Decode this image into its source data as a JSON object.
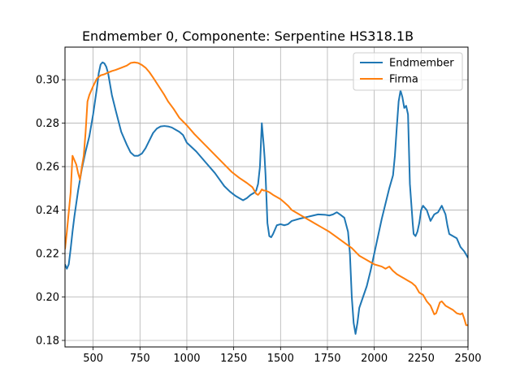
{
  "chart_data": {
    "type": "line",
    "title": "Endmember 0, Componente: Serpentine HS318.1B",
    "xlabel": "",
    "ylabel": "",
    "xlim": [
      350,
      2500
    ],
    "ylim": [
      0.177,
      0.315
    ],
    "xticks": [
      500,
      750,
      1000,
      1250,
      1500,
      1750,
      2000,
      2250,
      2500
    ],
    "yticks": [
      0.18,
      0.2,
      0.22,
      0.24,
      0.26,
      0.28,
      0.3
    ],
    "grid": true,
    "legend": "top-right",
    "series": [
      {
        "name": "Endmember",
        "color": "#1f77b4",
        "x": [
          350,
          360,
          370,
          380,
          390,
          400,
          420,
          440,
          460,
          480,
          500,
          520,
          530,
          540,
          550,
          560,
          570,
          580,
          600,
          620,
          650,
          680,
          700,
          720,
          740,
          760,
          780,
          800,
          820,
          840,
          860,
          880,
          900,
          920,
          940,
          960,
          980,
          1000,
          1050,
          1100,
          1150,
          1200,
          1230,
          1260,
          1280,
          1300,
          1320,
          1340,
          1350,
          1360,
          1370,
          1380,
          1390,
          1395,
          1400,
          1410,
          1415,
          1420,
          1430,
          1440,
          1450,
          1460,
          1480,
          1500,
          1520,
          1540,
          1560,
          1600,
          1650,
          1700,
          1740,
          1760,
          1780,
          1800,
          1820,
          1840,
          1860,
          1870,
          1880,
          1890,
          1900,
          1910,
          1920,
          1940,
          1960,
          1980,
          2000,
          2020,
          2040,
          2060,
          2080,
          2100,
          2110,
          2120,
          2130,
          2140,
          2150,
          2160,
          2170,
          2180,
          2190,
          2200,
          2205,
          2210,
          2220,
          2230,
          2240,
          2250,
          2260,
          2280,
          2300,
          2320,
          2340,
          2360,
          2380,
          2390,
          2400,
          2420,
          2440,
          2460,
          2480,
          2500
        ],
        "values": [
          0.215,
          0.213,
          0.215,
          0.222,
          0.23,
          0.237,
          0.249,
          0.259,
          0.267,
          0.274,
          0.284,
          0.296,
          0.303,
          0.307,
          0.308,
          0.3075,
          0.306,
          0.303,
          0.293,
          0.286,
          0.276,
          0.27,
          0.2665,
          0.265,
          0.265,
          0.266,
          0.2685,
          0.272,
          0.2755,
          0.2775,
          0.2785,
          0.2787,
          0.2785,
          0.278,
          0.277,
          0.276,
          0.2745,
          0.271,
          0.267,
          0.262,
          0.257,
          0.251,
          0.2485,
          0.2465,
          0.2455,
          0.2445,
          0.2455,
          0.247,
          0.2475,
          0.248,
          0.249,
          0.252,
          0.26,
          0.27,
          0.28,
          0.27,
          0.264,
          0.256,
          0.234,
          0.228,
          0.2275,
          0.229,
          0.233,
          0.2335,
          0.233,
          0.2335,
          0.235,
          0.236,
          0.237,
          0.238,
          0.2378,
          0.2375,
          0.238,
          0.239,
          0.2378,
          0.2365,
          0.23,
          0.22,
          0.2,
          0.188,
          0.183,
          0.188,
          0.195,
          0.2,
          0.205,
          0.212,
          0.22,
          0.228,
          0.236,
          0.243,
          0.25,
          0.256,
          0.265,
          0.278,
          0.29,
          0.295,
          0.292,
          0.287,
          0.288,
          0.284,
          0.252,
          0.24,
          0.234,
          0.229,
          0.228,
          0.23,
          0.234,
          0.24,
          0.242,
          0.24,
          0.235,
          0.238,
          0.239,
          0.242,
          0.238,
          0.233,
          0.229,
          0.228,
          0.227,
          0.223,
          0.221,
          0.218
        ]
      },
      {
        "name": "Firma",
        "color": "#ff7f0e",
        "x": [
          350,
          360,
          370,
          380,
          390,
          400,
          410,
          420,
          430,
          440,
          450,
          460,
          470,
          480,
          500,
          520,
          540,
          560,
          580,
          600,
          620,
          650,
          680,
          700,
          720,
          740,
          760,
          780,
          800,
          820,
          850,
          880,
          900,
          930,
          960,
          1000,
          1040,
          1080,
          1120,
          1160,
          1200,
          1240,
          1280,
          1320,
          1350,
          1370,
          1380,
          1390,
          1400,
          1410,
          1420,
          1440,
          1460,
          1480,
          1500,
          1520,
          1540,
          1560,
          1600,
          1640,
          1680,
          1720,
          1760,
          1800,
          1840,
          1880,
          1920,
          1960,
          2000,
          2040,
          2060,
          2080,
          2100,
          2120,
          2140,
          2160,
          2180,
          2200,
          2220,
          2240,
          2260,
          2280,
          2300,
          2320,
          2330,
          2340,
          2350,
          2360,
          2380,
          2400,
          2420,
          2440,
          2460,
          2470,
          2480,
          2490,
          2500
        ],
        "values": [
          0.222,
          0.23,
          0.239,
          0.248,
          0.265,
          0.263,
          0.261,
          0.257,
          0.254,
          0.26,
          0.265,
          0.276,
          0.29,
          0.293,
          0.297,
          0.3005,
          0.302,
          0.3025,
          0.3033,
          0.304,
          0.3045,
          0.3055,
          0.3065,
          0.3077,
          0.308,
          0.3077,
          0.3068,
          0.3055,
          0.3035,
          0.301,
          0.297,
          0.293,
          0.29,
          0.2865,
          0.2825,
          0.279,
          0.275,
          0.2715,
          0.268,
          0.2645,
          0.261,
          0.2575,
          0.2548,
          0.2525,
          0.2505,
          0.2475,
          0.247,
          0.248,
          0.2495,
          0.249,
          0.249,
          0.2482,
          0.247,
          0.246,
          0.245,
          0.2435,
          0.242,
          0.24,
          0.238,
          0.236,
          0.234,
          0.232,
          0.23,
          0.2275,
          0.225,
          0.2225,
          0.219,
          0.217,
          0.215,
          0.214,
          0.213,
          0.214,
          0.212,
          0.2105,
          0.2095,
          0.2085,
          0.2075,
          0.2065,
          0.205,
          0.202,
          0.201,
          0.198,
          0.196,
          0.192,
          0.1925,
          0.195,
          0.1975,
          0.198,
          0.196,
          0.195,
          0.194,
          0.1925,
          0.192,
          0.1925,
          0.19,
          0.187,
          0.187
        ]
      }
    ]
  }
}
